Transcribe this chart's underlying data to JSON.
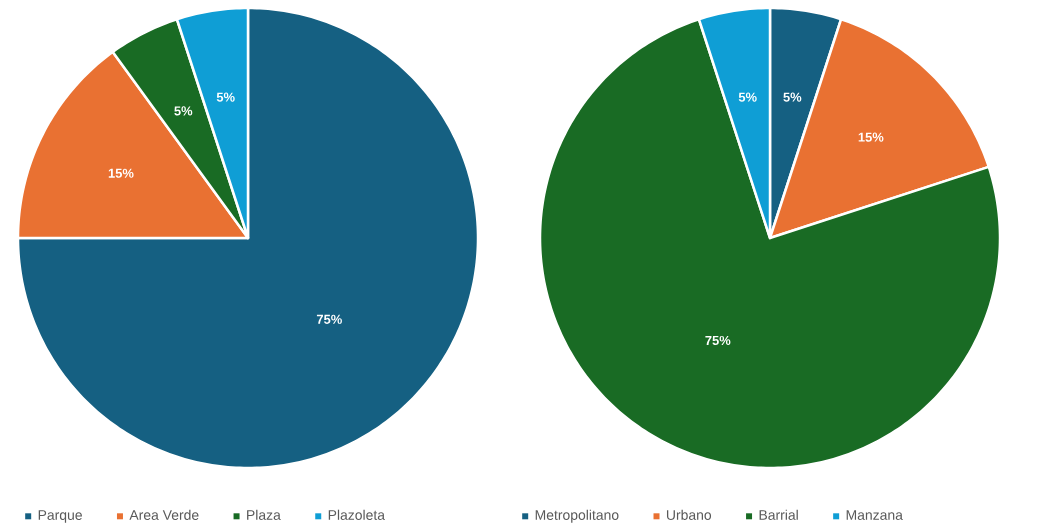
{
  "chart_data": [
    {
      "type": "pie",
      "categories": [
        "Parque",
        "Area Verde",
        "Plaza",
        "Plazoleta"
      ],
      "values": [
        75,
        15,
        5,
        5
      ],
      "value_labels": [
        "75%",
        "15%",
        "5%",
        "5%"
      ],
      "colors": [
        "#156082",
        "#e97132",
        "#196b24",
        "#0f9ed5"
      ],
      "legend": "bottom"
    },
    {
      "type": "pie",
      "categories": [
        "Metropolitano",
        "Urbano",
        "Barrial",
        "Manzana"
      ],
      "values": [
        5,
        15,
        75,
        5
      ],
      "value_labels": [
        "5%",
        "15%",
        "75%",
        "5%"
      ],
      "colors": [
        "#156082",
        "#e97132",
        "#196b24",
        "#0f9ed5"
      ],
      "legend": "bottom"
    }
  ]
}
